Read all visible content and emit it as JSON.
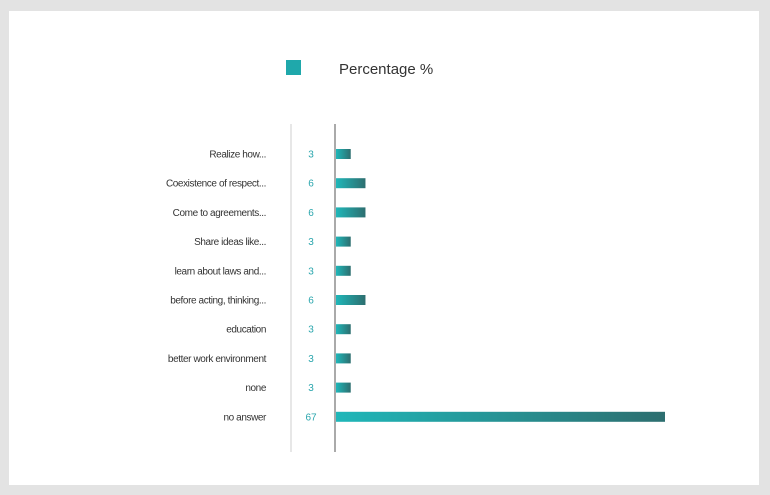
{
  "chart_data": {
    "type": "bar",
    "orientation": "horizontal",
    "legend": {
      "label": "Percentage %",
      "placement": "top-center"
    },
    "categories": [
      "Realize how...",
      "Coexistence of respect...",
      "Come to agreements...",
      "Share ideas like...",
      "learn about laws and...",
      "before acting, thinking...",
      "education",
      "better work environment",
      "none",
      "no answer"
    ],
    "series": [
      {
        "name": "Percentage %",
        "values": [
          3,
          6,
          6,
          3,
          3,
          6,
          3,
          3,
          3,
          67
        ],
        "value_labels": [
          "3",
          "6",
          "6",
          "3",
          "3",
          "6",
          "3",
          "3",
          "3",
          "67"
        ]
      }
    ],
    "xlim": [
      0,
      67
    ],
    "grid": false,
    "colors": {
      "bar_start": "#1fb7b9",
      "bar_end": "#2d6e6f",
      "value_text": "#2aa6ad",
      "legend_swatch": "#1fa8ab"
    }
  }
}
